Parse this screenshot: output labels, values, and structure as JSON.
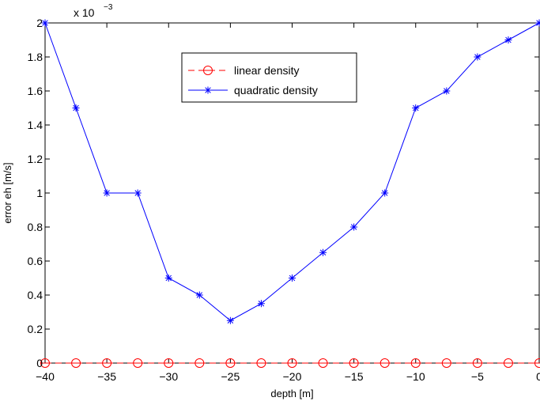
{
  "chart_data": {
    "type": "line",
    "title": "",
    "xlabel": "depth [m]",
    "ylabel": "error eh [m/s]",
    "y_multiplier_label": {
      "base": "x 10",
      "exponent": "−3"
    },
    "xlim": [
      -40,
      0
    ],
    "ylim": [
      0,
      2
    ],
    "grid": false,
    "legend_position": "top-center",
    "x_ticks": [
      -40,
      -35,
      -30,
      -25,
      -20,
      -15,
      -10,
      -5,
      0
    ],
    "x_tick_labels": [
      "−40",
      "−35",
      "−30",
      "−25",
      "−20",
      "−15",
      "−10",
      "−5",
      "0"
    ],
    "y_ticks": [
      0,
      0.2,
      0.4,
      0.6,
      0.8,
      1,
      1.2,
      1.4,
      1.6,
      1.8,
      2
    ],
    "y_tick_labels": [
      "0",
      "0.2",
      "0.4",
      "0.6",
      "0.8",
      "1",
      "1.2",
      "1.4",
      "1.6",
      "1.8",
      "2"
    ],
    "x": [
      -40,
      -37.5,
      -35,
      -32.5,
      -30,
      -27.5,
      -25,
      -22.5,
      -20,
      -17.5,
      -15,
      -12.5,
      -10,
      -7.5,
      -5,
      -2.5,
      0
    ],
    "series": [
      {
        "name": "linear density",
        "color": "#ff0000",
        "line_style": "dashed",
        "marker": "circle",
        "values": [
          0,
          0,
          0,
          0,
          0,
          0,
          0,
          0,
          0,
          0,
          0,
          0,
          0,
          0,
          0,
          0,
          0
        ]
      },
      {
        "name": "quadratic density",
        "color": "#0000ff",
        "line_style": "solid",
        "marker": "asterisk",
        "values": [
          2.0,
          1.5,
          1.0,
          1.0,
          0.5,
          0.4,
          0.25,
          0.35,
          0.5,
          0.65,
          0.8,
          1.0,
          1.5,
          1.6,
          1.8,
          1.9,
          2.0
        ]
      }
    ]
  }
}
